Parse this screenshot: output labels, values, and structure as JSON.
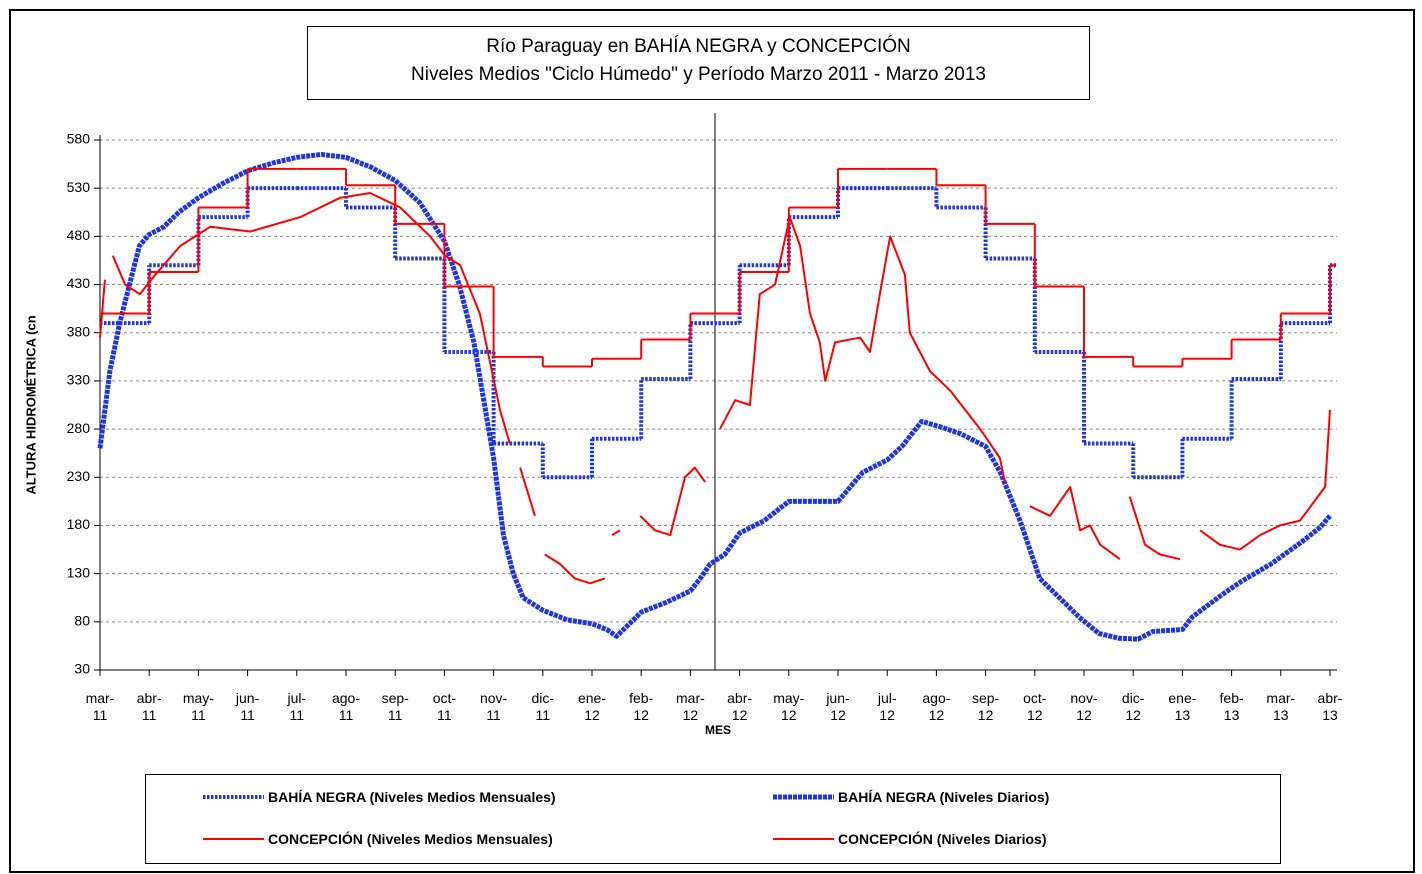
{
  "chart_data": {
    "type": "line",
    "title": "Río Paraguay en BAHÍA NEGRA y CONCEPCIÓN",
    "subtitle": "Niveles Medios \"Ciclo Húmedo\" y Período Marzo 2011 - Marzo 2013",
    "x_label": "MES",
    "y_label": "ALTURA HIDROMÉTRICA (cn",
    "xlim": [
      0,
      25
    ],
    "ylim": [
      30,
      580
    ],
    "yticks": [
      30,
      80,
      130,
      180,
      230,
      280,
      330,
      380,
      430,
      480,
      530,
      580
    ],
    "xticks": [
      {
        "value": 0,
        "label": "mar-\n11"
      },
      {
        "value": 1,
        "label": "abr-\n11"
      },
      {
        "value": 2,
        "label": "may-\n11"
      },
      {
        "value": 3,
        "label": "jun-\n11"
      },
      {
        "value": 4,
        "label": "jul-\n11"
      },
      {
        "value": 5,
        "label": "ago-\n11"
      },
      {
        "value": 6,
        "label": "sep-\n11"
      },
      {
        "value": 7,
        "label": "oct-\n11"
      },
      {
        "value": 8,
        "label": "nov-\n11"
      },
      {
        "value": 9,
        "label": "dic-\n11"
      },
      {
        "value": 10,
        "label": "ene-\n12"
      },
      {
        "value": 11,
        "label": "feb-\n12"
      },
      {
        "value": 12,
        "label": "mar-\n12"
      },
      {
        "value": 13,
        "label": "abr-\n12"
      },
      {
        "value": 14,
        "label": "may-\n12"
      },
      {
        "value": 15,
        "label": "jun-\n12"
      },
      {
        "value": 16,
        "label": "jul-\n12"
      },
      {
        "value": 17,
        "label": "ago-\n12"
      },
      {
        "value": 18,
        "label": "sep-\n12"
      },
      {
        "value": 19,
        "label": "oct-\n12"
      },
      {
        "value": 20,
        "label": "nov-\n12"
      },
      {
        "value": 21,
        "label": "dic-\n12"
      },
      {
        "value": 22,
        "label": "ene-\n13"
      },
      {
        "value": 23,
        "label": "feb-\n13"
      },
      {
        "value": 24,
        "label": "mar-\n13"
      },
      {
        "value": 25,
        "label": "abr-\n13"
      }
    ],
    "grid": true,
    "legend": "bottom",
    "series": [
      {
        "name": "BAHÍA NEGRA (Niveles Medios Mensuales)",
        "color": "#1f35e0",
        "step": true,
        "style": "dotted",
        "x": [
          0,
          1,
          2,
          3,
          4,
          5,
          6,
          7,
          8,
          9,
          10,
          11,
          12,
          13,
          14,
          15,
          16,
          17,
          18,
          19,
          20,
          21,
          22,
          23,
          24,
          25
        ],
        "values": [
          390,
          450,
          500,
          530,
          530,
          510,
          457,
          360,
          265,
          230,
          270,
          332,
          390,
          450,
          500,
          530,
          530,
          510,
          457,
          360,
          265,
          230,
          270,
          332,
          390,
          450
        ]
      },
      {
        "name": "BAHÍA NEGRA (Niveles Diarios)",
        "color": "#1f35e0",
        "step": false,
        "style": "heavy",
        "x": [
          0,
          0.1,
          0.2,
          0.4,
          0.6,
          0.8,
          1,
          1.3,
          1.6,
          2,
          2.5,
          3,
          3.5,
          4,
          4.5,
          5,
          5.5,
          6,
          6.5,
          7,
          7.3,
          7.6,
          7.8,
          8,
          8.2,
          8.4,
          8.6,
          9,
          9.5,
          10,
          10.3,
          10.5,
          10.8,
          11,
          11.5,
          12,
          12.2,
          12.4,
          12.7,
          13,
          13.5,
          14,
          14.5,
          15,
          15.5,
          16,
          16.3,
          16.7,
          17.1,
          17.5,
          18,
          18.3,
          18.7,
          19.1,
          19.5,
          19.9,
          20.3,
          20.7,
          21.1,
          21.4,
          22,
          22.2,
          22.8,
          23.2,
          23.8,
          24.4,
          24.8,
          25
        ],
        "values": [
          260,
          300,
          340,
          390,
          430,
          470,
          482,
          490,
          505,
          520,
          535,
          548,
          556,
          562,
          565,
          562,
          552,
          538,
          515,
          475,
          430,
          370,
          310,
          250,
          170,
          130,
          105,
          92,
          82,
          78,
          72,
          65,
          80,
          90,
          100,
          112,
          125,
          140,
          150,
          172,
          185,
          205,
          205,
          205,
          235,
          248,
          262,
          288,
          282,
          275,
          262,
          235,
          185,
          125,
          105,
          85,
          68,
          63,
          62,
          70,
          72,
          85,
          108,
          122,
          140,
          162,
          178,
          190
        ]
      },
      {
        "name": "CONCEPCIÓN (Niveles Medios Mensuales)",
        "color": "#ff0000",
        "step": true,
        "style": "solid",
        "x": [
          0,
          1,
          2,
          3,
          4,
          5,
          6,
          7,
          8,
          9,
          10,
          11,
          12,
          13,
          14,
          15,
          16,
          17,
          18,
          19,
          20,
          21,
          22,
          23,
          24,
          25
        ],
        "values": [
          400,
          443,
          510,
          550,
          550,
          533,
          493,
          428,
          355,
          345,
          353,
          373,
          400,
          443,
          510,
          550,
          550,
          533,
          493,
          428,
          355,
          345,
          353,
          373,
          400,
          450
        ]
      },
      {
        "name": "CONCEPCIÓN (Niveles Diarios)",
        "color": "#ff0000",
        "step": false,
        "style": "solid",
        "x": [
          0,
          0.1,
          null,
          0.26,
          0.51,
          0.81,
          1.12,
          1.63,
          2.24,
          3.05,
          4.07,
          4.88,
          5.49,
          6.1,
          6.71,
          7.01,
          7.32,
          7.72,
          8.13,
          8.33,
          null,
          8.54,
          8.84,
          null,
          9.04,
          9.35,
          9.65,
          9.96,
          10.26,
          null,
          10.41,
          10.57,
          null,
          10.98,
          11.28,
          11.59,
          11.89,
          12.09,
          12.3,
          null,
          12.6,
          12.91,
          13.21,
          13.41,
          13.72,
          14.02,
          14.23,
          14.43,
          14.63,
          14.74,
          14.94,
          15.45,
          15.65,
          15.85,
          16.06,
          16.36,
          16.46,
          16.87,
          17.28,
          17.89,
          18.29,
          18.39,
          null,
          18.9,
          19.31,
          19.72,
          19.92,
          20.12,
          20.33,
          20.73,
          null,
          20.93,
          21.24,
          21.54,
          21.95,
          null,
          22.36,
          22.76,
          23.17,
          23.58,
          23.98,
          24.39,
          24.9,
          25
        ],
        "values": [
          375,
          435,
          null,
          460,
          430,
          420,
          440,
          470,
          490,
          485,
          500,
          520,
          525,
          510,
          480,
          460,
          450,
          400,
          300,
          265,
          null,
          240,
          190,
          null,
          150,
          140,
          125,
          120,
          125,
          null,
          170,
          175,
          null,
          190,
          175,
          170,
          230,
          240,
          225,
          null,
          280,
          310,
          305,
          420,
          430,
          500,
          470,
          400,
          370,
          330,
          370,
          375,
          360,
          420,
          480,
          440,
          380,
          340,
          320,
          280,
          250,
          225,
          null,
          200,
          190,
          220,
          175,
          180,
          160,
          145,
          null,
          210,
          160,
          150,
          145,
          null,
          175,
          160,
          155,
          170,
          180,
          185,
          220,
          300
        ]
      }
    ]
  }
}
